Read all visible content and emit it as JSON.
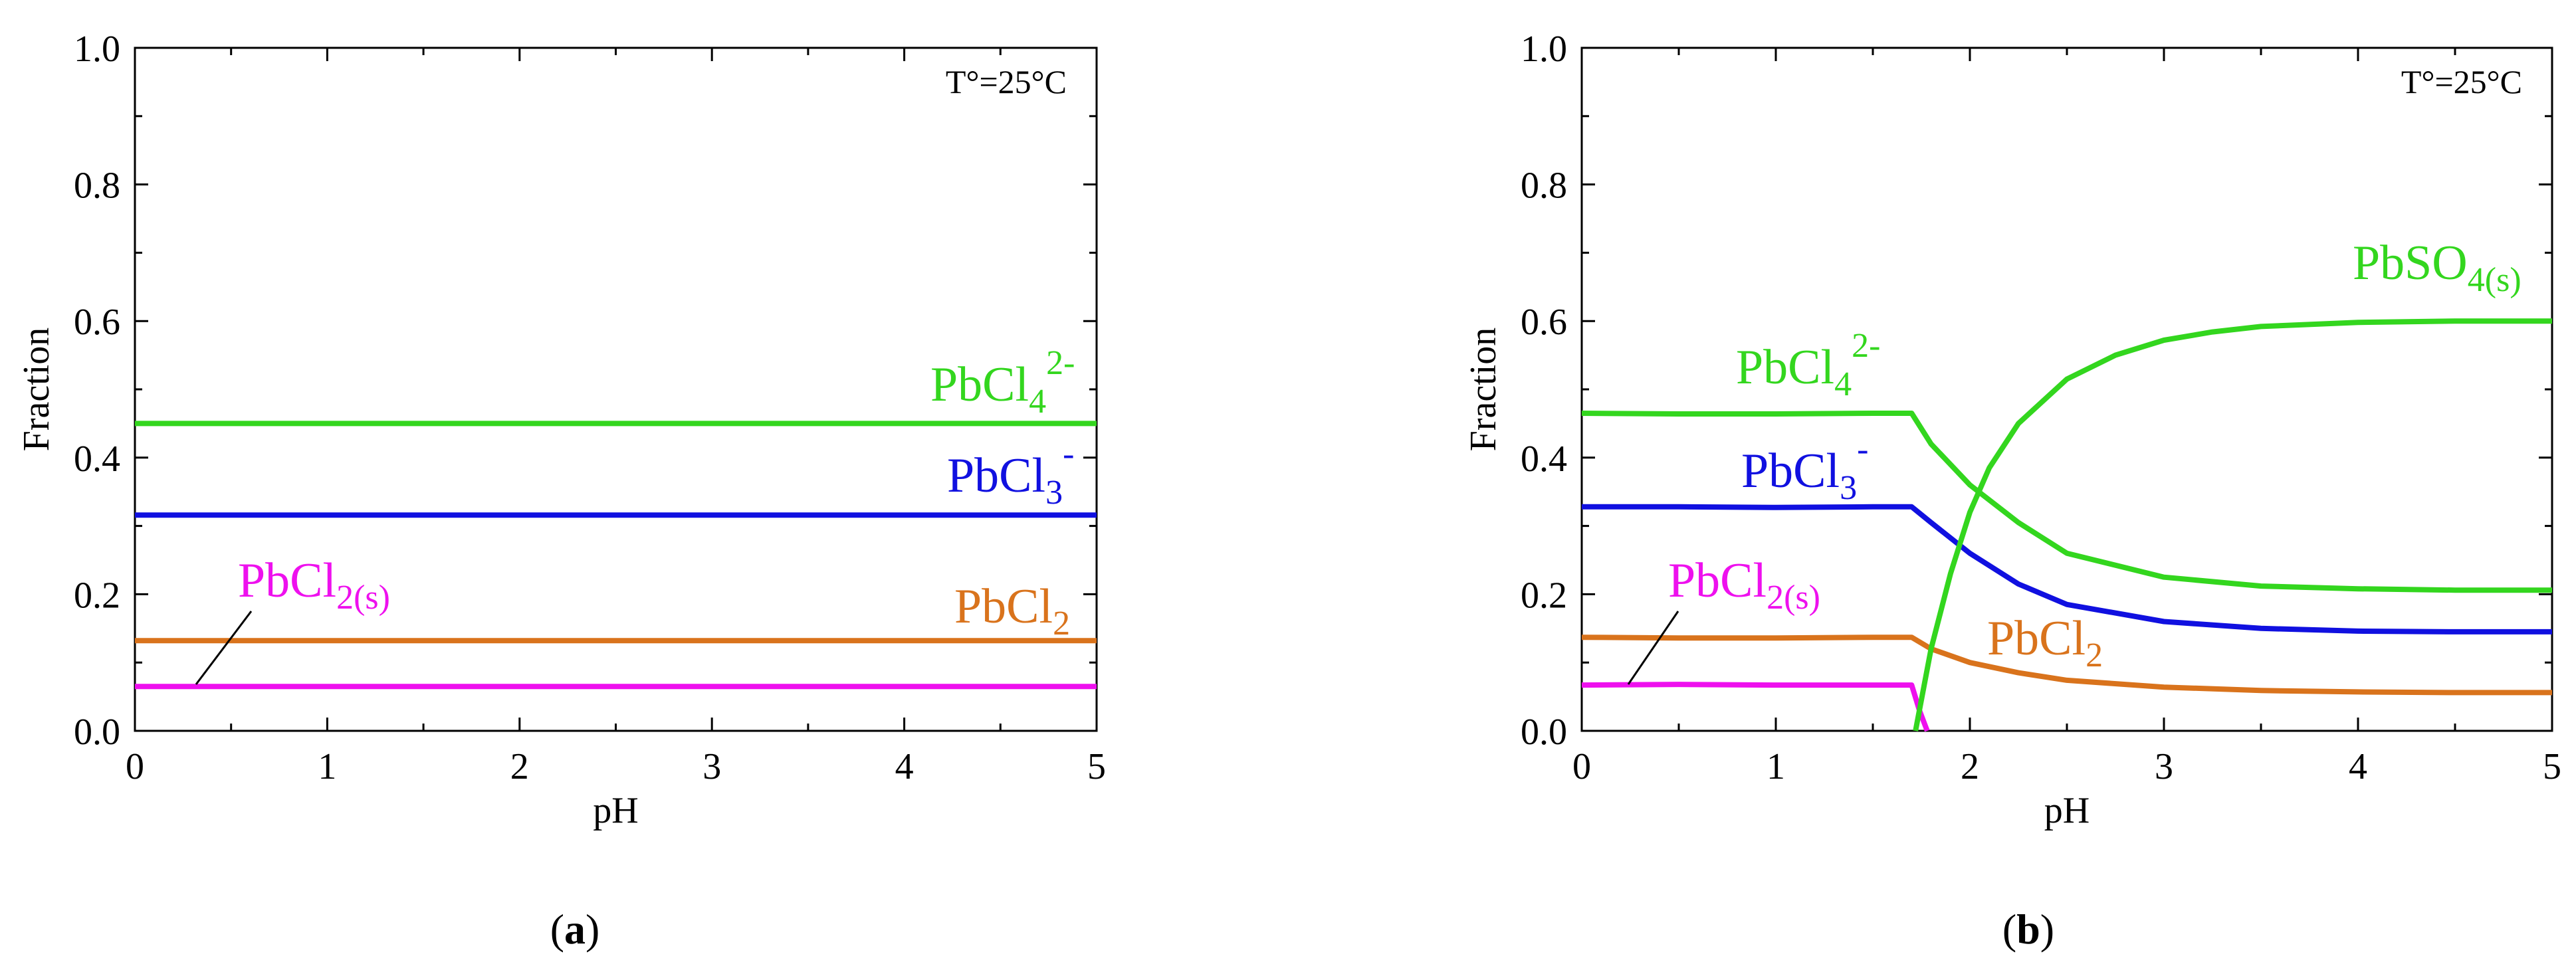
{
  "chart_data": [
    {
      "type": "line",
      "panel": "a",
      "panel_label": "a",
      "title": "",
      "xlabel": "pH",
      "ylabel": "Fraction",
      "xlim": [
        0,
        5
      ],
      "ylim": [
        0,
        1
      ],
      "xticks": [
        "0",
        "1",
        "2",
        "3",
        "4",
        "5"
      ],
      "yticks": [
        "0.0",
        "0.2",
        "0.4",
        "0.6",
        "0.8",
        "1.0"
      ],
      "annotation": "T°=25°C",
      "series": [
        {
          "name": "PbCl4 2-",
          "color": "#33d61e",
          "x": [
            0,
            5
          ],
          "y": [
            0.45,
            0.45
          ]
        },
        {
          "name": "PbCl3 -",
          "color": "#1010e0",
          "x": [
            0,
            5
          ],
          "y": [
            0.316,
            0.316
          ]
        },
        {
          "name": "PbCl2",
          "color": "#d9731c",
          "x": [
            0,
            5
          ],
          "y": [
            0.132,
            0.132
          ]
        },
        {
          "name": "PbCl2(s)",
          "color": "#ee10ee",
          "x": [
            0,
            5
          ],
          "y": [
            0.065,
            0.065
          ]
        }
      ],
      "labels": {
        "pbcl4": {
          "main": "PbCl",
          "sub": "4",
          "sup": "2-"
        },
        "pbcl3": {
          "main": "PbCl",
          "sub": "3",
          "sup": "-"
        },
        "pbcl2": {
          "main": "PbCl",
          "sub": "2"
        },
        "pbcl2s": {
          "main": "PbCl",
          "sub": "2(s)"
        }
      }
    },
    {
      "type": "line",
      "panel": "b",
      "panel_label": "b",
      "title": "",
      "xlabel": "pH",
      "ylabel": "Fraction",
      "xlim": [
        0,
        5
      ],
      "ylim": [
        0,
        1
      ],
      "xticks": [
        "0",
        "1",
        "2",
        "3",
        "4",
        "5"
      ],
      "yticks": [
        "0.0",
        "0.2",
        "0.4",
        "0.6",
        "0.8",
        "1.0"
      ],
      "annotation": "T°=25°C",
      "series": [
        {
          "name": "PbCl4 2-",
          "color": "#33d61e",
          "x": [
            0,
            0.5,
            1.0,
            1.5,
            1.7,
            1.8,
            2.0,
            2.25,
            2.5,
            3.0,
            3.5,
            4.0,
            4.5,
            5.0
          ],
          "y": [
            0.465,
            0.464,
            0.464,
            0.465,
            0.465,
            0.42,
            0.36,
            0.305,
            0.26,
            0.225,
            0.212,
            0.208,
            0.206,
            0.206
          ]
        },
        {
          "name": "PbCl3 -",
          "color": "#1010e0",
          "x": [
            0,
            0.5,
            1.0,
            1.5,
            1.7,
            1.8,
            2.0,
            2.25,
            2.5,
            3.0,
            3.5,
            4.0,
            4.5,
            5.0
          ],
          "y": [
            0.328,
            0.328,
            0.327,
            0.328,
            0.328,
            0.305,
            0.26,
            0.215,
            0.185,
            0.16,
            0.15,
            0.146,
            0.145,
            0.145
          ]
        },
        {
          "name": "PbCl2",
          "color": "#d9731c",
          "x": [
            0,
            0.5,
            1.0,
            1.5,
            1.7,
            1.8,
            2.0,
            2.25,
            2.5,
            3.0,
            3.5,
            4.0,
            4.5,
            5.0
          ],
          "y": [
            0.137,
            0.136,
            0.136,
            0.137,
            0.137,
            0.12,
            0.1,
            0.085,
            0.074,
            0.064,
            0.059,
            0.057,
            0.056,
            0.056
          ]
        },
        {
          "name": "PbCl2(s)",
          "color": "#ee10ee",
          "x": [
            0,
            0.5,
            1.0,
            1.5,
            1.7,
            1.74,
            1.78
          ],
          "y": [
            0.067,
            0.068,
            0.067,
            0.067,
            0.067,
            0.03,
            0.0
          ]
        },
        {
          "name": "PbSO4(s)",
          "color": "#33d61e",
          "x": [
            1.72,
            1.8,
            1.9,
            2.0,
            2.1,
            2.25,
            2.5,
            2.75,
            3.0,
            3.25,
            3.5,
            4.0,
            4.5,
            5.0
          ],
          "y": [
            0.0,
            0.12,
            0.23,
            0.32,
            0.385,
            0.45,
            0.515,
            0.55,
            0.572,
            0.584,
            0.592,
            0.598,
            0.6,
            0.6
          ]
        }
      ],
      "labels": {
        "pbcl4": {
          "main": "PbCl",
          "sub": "4",
          "sup": "2-"
        },
        "pbcl3": {
          "main": "PbCl",
          "sub": "3",
          "sup": "-"
        },
        "pbcl2": {
          "main": "PbCl",
          "sub": "2"
        },
        "pbcl2s": {
          "main": "PbCl",
          "sub": "2(s)"
        },
        "pbso4": {
          "main": "PbSO",
          "sub": "4(s)"
        }
      }
    }
  ]
}
